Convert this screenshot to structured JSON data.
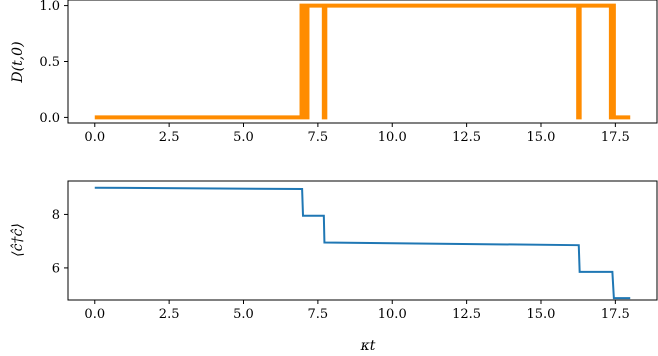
{
  "chart_data": [
    {
      "type": "line",
      "ylabel": "D(t,0)",
      "xlabel": "",
      "xlim": [
        -0.9,
        18.9
      ],
      "ylim": [
        -0.05,
        1.05
      ],
      "xticks": [
        0.0,
        2.5,
        5.0,
        7.5,
        10.0,
        12.5,
        15.0,
        17.5
      ],
      "xtick_labels": [
        "0.0",
        "2.5",
        "5.0",
        "7.5",
        "10.0",
        "12.5",
        "15.0",
        "17.5"
      ],
      "yticks": [
        0.0,
        0.5,
        1.0
      ],
      "ytick_labels": [
        "0.0",
        "0.5",
        "1.0"
      ],
      "grid": false,
      "series": [
        {
          "color": "#ff8c00",
          "x": [
            0.0,
            6.95,
            6.95,
            7.0,
            7.0,
            7.05,
            7.05,
            7.1,
            7.1,
            7.15,
            7.15,
            7.7,
            7.7,
            7.75,
            7.75,
            16.25,
            16.25,
            16.3,
            16.3,
            17.35,
            17.35,
            17.4,
            17.4,
            17.45,
            17.45,
            18.0
          ],
          "y": [
            0,
            0,
            1,
            1,
            0,
            0,
            1,
            1,
            0,
            0,
            1,
            1,
            0,
            0,
            1,
            1,
            0,
            0,
            1,
            1,
            0,
            0,
            1,
            1,
            0,
            0
          ]
        }
      ]
    },
    {
      "type": "line",
      "ylabel": "⟨ĉ†ĉ⟩",
      "xlabel": "κt",
      "xlim": [
        -0.9,
        18.9
      ],
      "ylim": [
        4.8,
        9.25
      ],
      "xticks": [
        0.0,
        2.5,
        5.0,
        7.5,
        10.0,
        12.5,
        15.0,
        17.5
      ],
      "xtick_labels": [
        "0.0",
        "2.5",
        "5.0",
        "7.5",
        "10.0",
        "12.5",
        "15.0",
        "17.5"
      ],
      "yticks": [
        6,
        8
      ],
      "ytick_labels": [
        "6",
        "8"
      ],
      "grid": false,
      "series": [
        {
          "color": "#1f77b4",
          "x": [
            0.0,
            6.97,
            7.0,
            7.7,
            7.72,
            16.27,
            16.3,
            17.4,
            17.45,
            18.0
          ],
          "y": [
            9.0,
            8.95,
            7.95,
            7.95,
            6.95,
            6.85,
            5.85,
            5.85,
            4.87,
            4.87
          ]
        }
      ]
    }
  ]
}
